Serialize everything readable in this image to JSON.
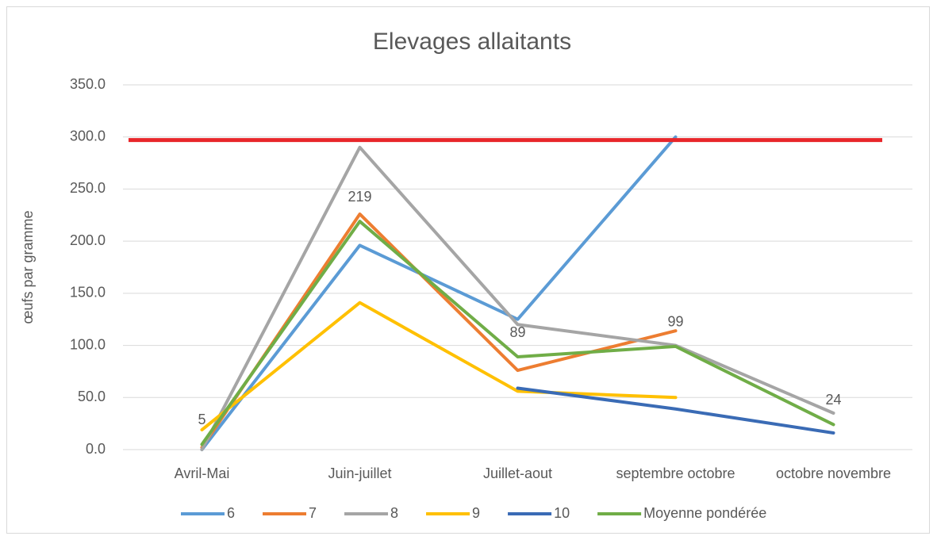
{
  "chart_data": {
    "type": "line",
    "title": "Elevages allaitants",
    "y_label": "œufs par gramme",
    "categories": [
      "Avril-Mai",
      "Juin-juillet",
      "Juillet-aout",
      "septembre octobre",
      "octobre novembre"
    ],
    "series": [
      {
        "name": "6",
        "color": "#5b9bd5",
        "values": [
          0,
          196,
          125,
          300,
          null
        ]
      },
      {
        "name": "7",
        "color": "#ed7d31",
        "values": [
          2,
          226,
          76,
          114,
          null
        ]
      },
      {
        "name": "8",
        "color": "#a5a5a5",
        "values": [
          0,
          290,
          120,
          100,
          35
        ]
      },
      {
        "name": "9",
        "color": "#ffc000",
        "values": [
          19,
          141,
          56,
          50,
          null
        ]
      },
      {
        "name": "10",
        "color": "#3a6bb5",
        "values": [
          null,
          null,
          59,
          39,
          16
        ]
      },
      {
        "name": "Moyenne pondérée",
        "color": "#70ad47",
        "values": [
          5,
          219,
          89,
          99,
          24
        ],
        "data_labels": true
      }
    ],
    "reference_line": {
      "value": 297,
      "color": "#e8262a"
    },
    "ylim": [
      0,
      350
    ],
    "yticks": [
      {
        "value": 0,
        "label": "0.0"
      },
      {
        "value": 50,
        "label": "50.0"
      },
      {
        "value": 100,
        "label": "100.0"
      },
      {
        "value": 150,
        "label": "150.0"
      },
      {
        "value": 200,
        "label": "200.0"
      },
      {
        "value": 250,
        "label": "250.0"
      },
      {
        "value": 300,
        "label": "300.0"
      },
      {
        "value": 350,
        "label": "350.0"
      }
    ],
    "grid": true,
    "legend": "bottom"
  }
}
